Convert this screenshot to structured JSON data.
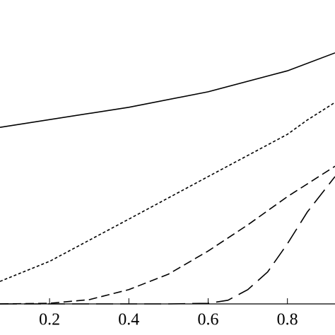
{
  "chart_data": {
    "type": "line",
    "xlim": [
      0.075,
      0.92
    ],
    "ylim": [
      0,
      1
    ],
    "xticks": [
      0.2,
      0.4,
      0.6,
      0.8
    ],
    "series": [
      {
        "color": "#000000",
        "dash": "solid",
        "x": [
          0.075,
          0.4,
          0.6,
          0.8,
          0.92
        ],
        "values": [
          0.581,
          0.647,
          0.698,
          0.767,
          0.826
        ]
      },
      {
        "color": "#000000",
        "dash": "dotted",
        "x": [
          0.075,
          0.2,
          0.4,
          0.6,
          0.8,
          0.85,
          0.92
        ],
        "values": [
          0.074,
          0.14,
          0.279,
          0.419,
          0.558,
          0.605,
          0.663
        ]
      },
      {
        "color": "#000000",
        "dash": "dashed",
        "x": [
          0.075,
          0.2,
          0.3,
          0.4,
          0.5,
          0.6,
          0.7,
          0.8,
          0.92
        ],
        "values": [
          0,
          0.002,
          0.014,
          0.047,
          0.098,
          0.174,
          0.26,
          0.353,
          0.453
        ]
      },
      {
        "color": "#000000",
        "dash": "longdash",
        "x": [
          0.075,
          0.5,
          0.6,
          0.65,
          0.7,
          0.75,
          0.8,
          0.85,
          0.92
        ],
        "values": [
          0,
          0,
          0.002,
          0.012,
          0.047,
          0.105,
          0.198,
          0.302,
          0.419
        ]
      }
    ]
  }
}
